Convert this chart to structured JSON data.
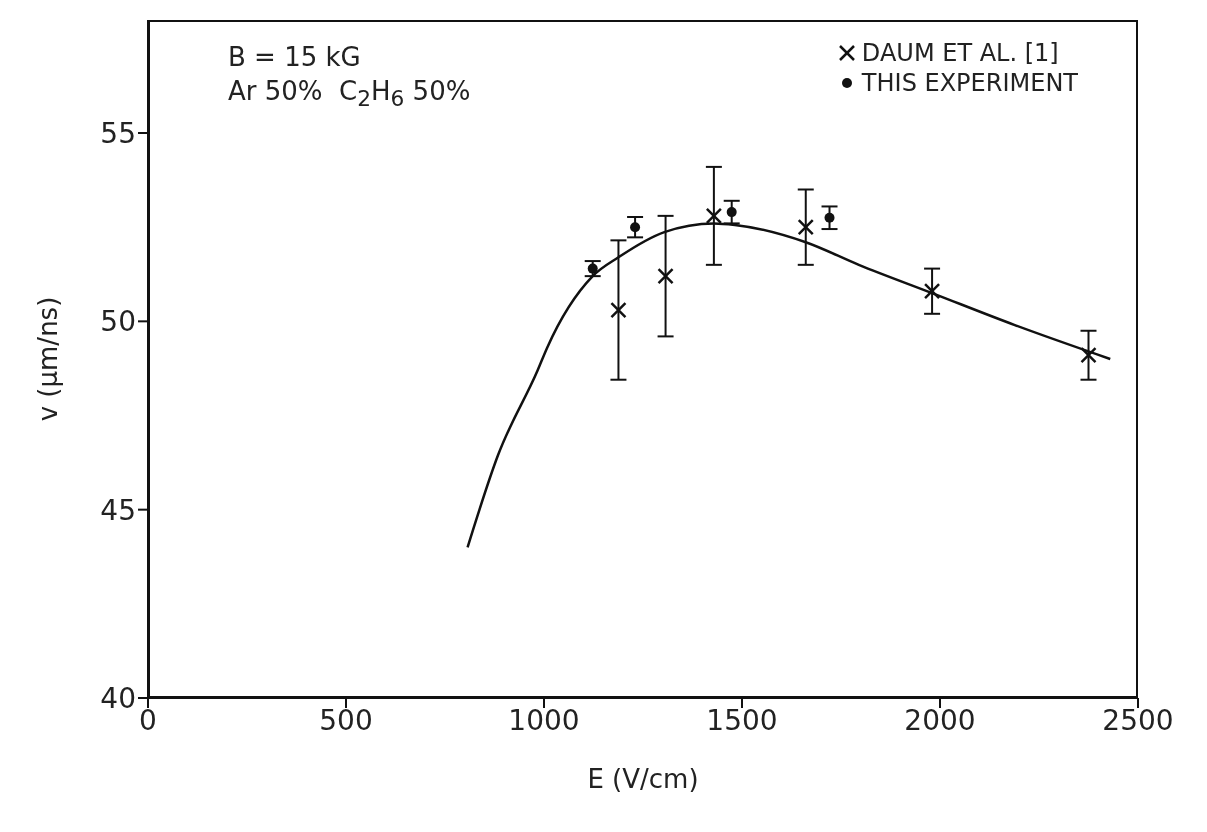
{
  "chart_data": {
    "type": "scatter",
    "xlabel": "E (V/cm)",
    "ylabel": "v (μm/ns)",
    "annotations": [
      "B = 15 kG",
      "Ar 50%  C$_{2}$H$_{6}$ 50%"
    ],
    "xlim": [
      0,
      2500
    ],
    "xticks": [
      0,
      500,
      1000,
      1500,
      2000,
      2500
    ],
    "ylim": [
      40,
      58
    ],
    "yticks": [
      40,
      45,
      50,
      55
    ],
    "grid": false,
    "legend": "top right",
    "series": [
      {
        "name": "DAUM ET AL. [1]",
        "marker": "cross",
        "color": "#111111",
        "x": [
          1188,
          1307,
          1429,
          1661,
          1980,
          2375
        ],
        "values": [
          50.3,
          51.2,
          52.8,
          52.5,
          50.8,
          49.1
        ],
        "errors": [
          1.85,
          1.6,
          1.3,
          1.0,
          0.6,
          0.65
        ]
      },
      {
        "name": "THIS EXPERIMENT",
        "marker": "circle",
        "color": "#111111",
        "x": [
          1123,
          1230,
          1474,
          1721
        ],
        "values": [
          51.4,
          52.5,
          52.9,
          52.75
        ],
        "errors": [
          0.2,
          0.27,
          0.3,
          0.3
        ]
      },
      {
        "type": "line",
        "marker": "none",
        "color": "#111111",
        "x": [
          807,
          884,
          984,
          1008,
          1123,
          1188,
          1304,
          1429,
          1482,
          1661,
          1795,
          1980,
          2189,
          2430
        ],
        "values": [
          44.0,
          46.45,
          48.7,
          49.3,
          51.2,
          51.7,
          52.37,
          52.6,
          52.56,
          52.1,
          51.5,
          50.75,
          49.9,
          49.0
        ]
      }
    ]
  }
}
